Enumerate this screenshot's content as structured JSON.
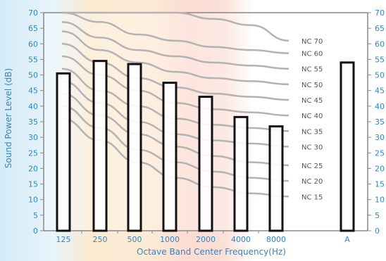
{
  "chart_data": {
    "type": "bar",
    "xlabel": "Octave Band Center Frequency(Hz)",
    "ylabel": "Sound Power Level (dB)",
    "ylim": [
      0,
      70
    ],
    "yticks": [
      0,
      5,
      10,
      15,
      20,
      25,
      30,
      35,
      40,
      45,
      50,
      55,
      60,
      65,
      70
    ],
    "categories": [
      "125",
      "250",
      "500",
      "1000",
      "2000",
      "4000",
      "8000",
      "A"
    ],
    "values": [
      50.5,
      54.5,
      53.5,
      47.5,
      43,
      36.5,
      33.5,
      54
    ],
    "curve_x": [
      "125",
      "250",
      "500",
      "1000",
      "2000",
      "4000",
      "8000"
    ],
    "nc_curves": [
      {
        "name": "NC 15",
        "values": [
          36,
          29,
          22,
          17,
          14,
          12,
          11
        ]
      },
      {
        "name": "NC 20",
        "values": [
          40,
          33,
          26,
          22,
          19,
          17,
          16
        ]
      },
      {
        "name": "NC 25",
        "values": [
          44,
          37,
          31,
          27,
          24,
          22,
          21
        ]
      },
      {
        "name": "NC 30",
        "values": [
          48,
          41,
          35,
          31,
          29,
          28,
          27
        ]
      },
      {
        "name": "NC 35",
        "values": [
          52,
          45,
          40,
          36,
          34,
          33,
          32
        ]
      },
      {
        "name": "NC 40",
        "values": [
          56,
          50,
          45,
          41,
          39,
          38,
          37
        ]
      },
      {
        "name": "NC 45",
        "values": [
          60,
          54,
          49,
          46,
          44,
          43,
          42
        ]
      },
      {
        "name": "NC 50",
        "values": [
          64,
          58,
          54,
          51,
          49,
          48,
          47
        ]
      },
      {
        "name": "NC 55",
        "values": [
          67,
          62,
          58,
          56,
          54,
          53,
          52
        ]
      },
      {
        "name": "NC 60",
        "values": [
          70,
          67,
          63,
          61,
          59,
          58,
          57
        ]
      },
      {
        "name": "NC 70",
        "values": [
          70,
          70,
          70,
          70,
          68,
          66,
          61
        ]
      }
    ],
    "bar_color": "#ffffff",
    "bar_stroke": "#111111",
    "curve_color": "#b3b3b3",
    "axis_color": "#888888",
    "tick_color": "#2e86c8",
    "background_bands": [
      "#cfe9f7",
      "#fde3c4",
      "#f9cfc6"
    ]
  }
}
